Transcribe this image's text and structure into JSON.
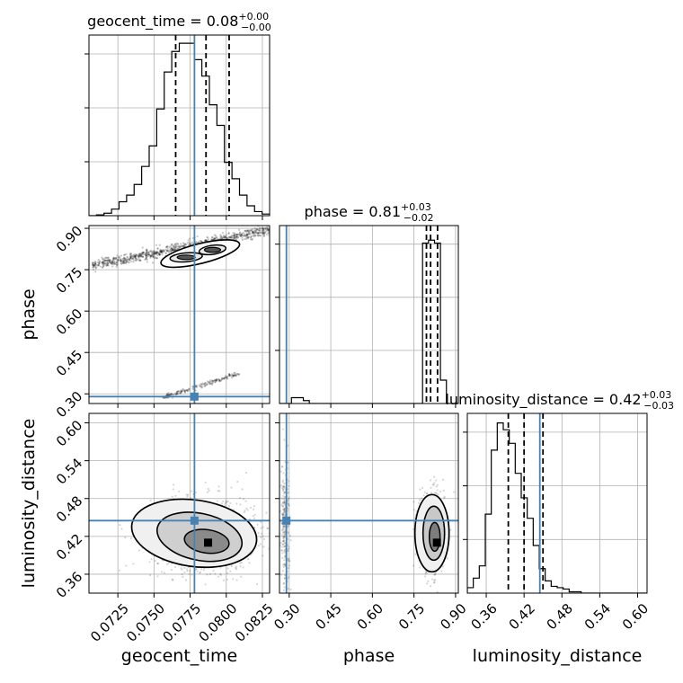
{
  "chart_data": {
    "type": "corner",
    "truth_color": "#4682b4",
    "line_color": "#000000",
    "grid": true,
    "parameters": [
      {
        "name": "geocent_time",
        "range": [
          0.0705,
          0.083
        ],
        "ticks": [
          0.0725,
          0.075,
          0.0775,
          0.08,
          0.0825
        ],
        "tick_labels": [
          "0.0725",
          "0.0750",
          "0.0775",
          "0.0800",
          "0.0825"
        ],
        "truth": 0.0778,
        "quantiles": [
          0.0765,
          0.0786,
          0.0802
        ],
        "title": {
          "main": "geocent_time = 0.08",
          "plus": "+0.00",
          "minus": "−0.00"
        },
        "hist": [
          0,
          1,
          3,
          8,
          17,
          25,
          38,
          60,
          85,
          130,
          175,
          200,
          210,
          210,
          190,
          170,
          135,
          110,
          65,
          45,
          25,
          12,
          5,
          2
        ],
        "hist_ylim": [
          0,
          220
        ]
      },
      {
        "name": "phase",
        "range": [
          0.265,
          0.91
        ],
        "ticks": [
          0.3,
          0.45,
          0.6,
          0.75,
          0.9
        ],
        "tick_labels": [
          "0.30",
          "0.45",
          "0.60",
          "0.75",
          "0.90"
        ],
        "truth": 0.29,
        "quantiles": [
          0.795,
          0.81,
          0.835
        ],
        "title": {
          "main": "phase = 0.81",
          "plus": "+0.03",
          "minus": "−0.02"
        },
        "hist": [
          0,
          0,
          4,
          4,
          2,
          0,
          0,
          0,
          0,
          0,
          0,
          0,
          0,
          0,
          0,
          0,
          0,
          0,
          0,
          0,
          0,
          0,
          0,
          0,
          110,
          112,
          110,
          16,
          0,
          0
        ],
        "hist_ylim": [
          0,
          122
        ]
      },
      {
        "name": "luminosity_distance",
        "range": [
          0.33,
          0.615
        ],
        "ticks": [
          0.36,
          0.42,
          0.48,
          0.54,
          0.6
        ],
        "tick_labels": [
          "0.36",
          "0.42",
          "0.48",
          "0.54",
          "0.60"
        ],
        "truth": 0.445,
        "quantiles": [
          0.395,
          0.42,
          0.45
        ],
        "title": {
          "main": "luminosity_distance = 0.42",
          "plus": "+0.03",
          "minus": "−0.03"
        },
        "hist": [
          4,
          11,
          20,
          58,
          105,
          125,
          120,
          110,
          88,
          70,
          55,
          35,
          18,
          9,
          5,
          4,
          3,
          1,
          1,
          0,
          0,
          0,
          0,
          0,
          0,
          0,
          0,
          0,
          0,
          0
        ],
        "hist_ylim": [
          0,
          132
        ]
      }
    ],
    "histogram_tick_count": 3
  }
}
